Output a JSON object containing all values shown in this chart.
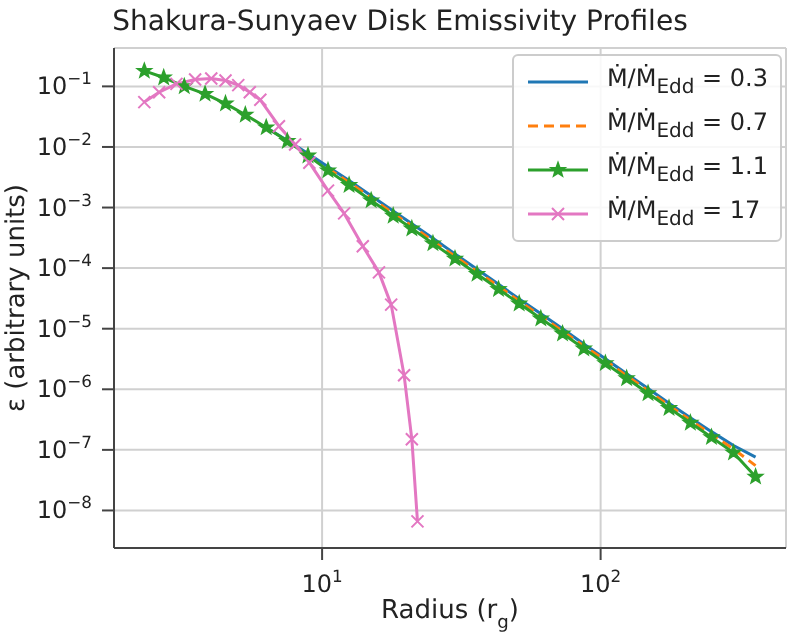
{
  "chart_data": {
    "type": "line",
    "title": "Shakura-Sunyaev Disk Emissivity Profiles",
    "xlabel": "Radius (r$_{g}$)",
    "ylabel": "ε (arbitrary units)",
    "log": "xy",
    "grid": true,
    "legend": "top right",
    "xlim": [
      1.79,
      463
    ],
    "ylim": [
      2.4e-09,
      0.43
    ],
    "xticks": [
      {
        "value": 10,
        "label": "10$^{1}$"
      },
      {
        "value": 100,
        "label": "10$^{2}$"
      }
    ],
    "yticks": [
      {
        "value": 1e-08,
        "label": "10$^{−8}$"
      },
      {
        "value": 1e-07,
        "label": "10$^{−7}$"
      },
      {
        "value": 1e-06,
        "label": "10$^{−6}$"
      },
      {
        "value": 1e-05,
        "label": "10$^{−5}$"
      },
      {
        "value": 0.0001,
        "label": "10$^{−4}$"
      },
      {
        "value": 0.001,
        "label": "10$^{−3}$"
      },
      {
        "value": 0.01,
        "label": "10$^{−2}$"
      },
      {
        "value": 0.1,
        "label": "10$^{−1}$"
      }
    ],
    "series": [
      {
        "name": "Ṁ/Ṁ$_{Edd}$ = 0.3",
        "color": "#1f77b4",
        "marker": "none",
        "line_style": "solid",
        "x": [
          6.3,
          7.5,
          8.9,
          10.5,
          12.5,
          15,
          18,
          21,
          25,
          30,
          36,
          43,
          51,
          61,
          73,
          87,
          104,
          124,
          148,
          176,
          210,
          250,
          300,
          360
        ],
        "values": [
          0.021,
          0.0128,
          0.0078,
          0.0047,
          0.0028,
          0.00157,
          0.00088,
          0.00054,
          0.00031,
          0.000172,
          9.6e-05,
          5.4e-05,
          3.1e-05,
          1.76e-05,
          1e-05,
          5.6e-06,
          3.2e-06,
          1.8e-06,
          1.03e-06,
          5.9e-07,
          3.4e-07,
          2e-07,
          1.18e-07,
          7.6e-08
        ]
      },
      {
        "name": "Ṁ/Ṁ$_{Edd}$ = 0.7",
        "color": "#ff7f0e",
        "marker": "none",
        "line_style": "dashed",
        "x": [
          10.5,
          12.5,
          15,
          18,
          21,
          25,
          30,
          36,
          43,
          51,
          61,
          73,
          87,
          104,
          124,
          148,
          176,
          210,
          250,
          300,
          360
        ],
        "values": [
          0.0044,
          0.0026,
          0.00144,
          0.0008,
          0.0005,
          0.00028,
          0.000157,
          8.8e-05,
          5e-05,
          2.86e-05,
          1.62e-05,
          9.1e-06,
          5.2e-06,
          3e-06,
          1.67e-06,
          9.5e-07,
          5.4e-07,
          3.1e-07,
          1.8e-07,
          1.03e-07,
          5.5e-08
        ]
      },
      {
        "name": "Ṁ/Ṁ$_{Edd}$ = 1.1",
        "color": "#2ca02c",
        "marker": "star",
        "line_style": "solid",
        "x": [
          2.3,
          2.7,
          3.2,
          3.8,
          4.5,
          5.3,
          6.3,
          7.5,
          8.9,
          10.5,
          12.5,
          15,
          18,
          21,
          25,
          30,
          36,
          43,
          51,
          61,
          73,
          87,
          104,
          124,
          148,
          176,
          210,
          250,
          300,
          360
        ],
        "values": [
          0.18,
          0.14,
          0.1,
          0.075,
          0.052,
          0.034,
          0.021,
          0.0125,
          0.0072,
          0.0041,
          0.00235,
          0.00131,
          0.00073,
          0.00045,
          0.000256,
          0.000143,
          8e-05,
          4.5e-05,
          2.6e-05,
          1.47e-05,
          8.3e-06,
          4.7e-06,
          2.7e-06,
          1.52e-06,
          8.6e-07,
          4.9e-07,
          2.8e-07,
          1.62e-07,
          9e-08,
          3.6e-08
        ]
      },
      {
        "name": "Ṁ/Ṁ$_{Edd}$ = 17",
        "color": "#e377c2",
        "marker": "cross",
        "line_style": "solid",
        "x": [
          2.3,
          2.6,
          3.0,
          3.5,
          4.0,
          4.5,
          5.0,
          5.5,
          6.0,
          7.0,
          8.0,
          9.0,
          10.5,
          12,
          14,
          16,
          17.7,
          19.7,
          21,
          22
        ],
        "values": [
          0.055,
          0.08,
          0.11,
          0.13,
          0.135,
          0.125,
          0.105,
          0.08,
          0.06,
          0.022,
          0.011,
          0.0055,
          0.0019,
          0.0008,
          0.00023,
          8.5e-05,
          2.5e-05,
          1.7e-06,
          1.5e-07,
          6.6e-09
        ]
      }
    ]
  }
}
